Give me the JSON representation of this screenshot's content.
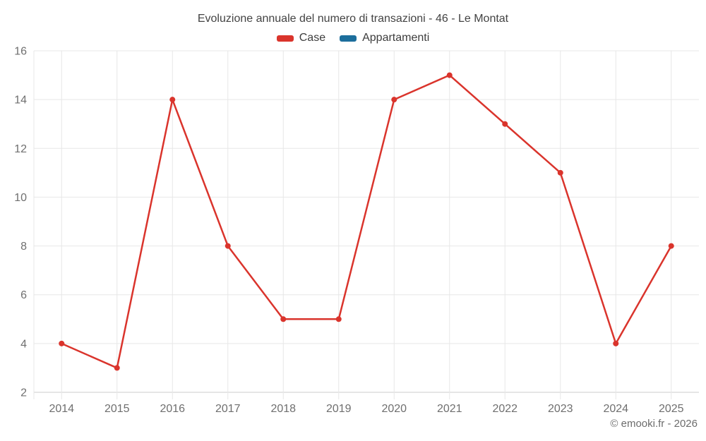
{
  "footer": {
    "text": "© emooki.fr - 2026"
  },
  "colors": {
    "case_red": "#da342c",
    "appartamenti_blue": "#1c6e9c",
    "grid": "#e7e7e7",
    "axis_line": "#cccccc",
    "axis_label": "#6f6f6f",
    "title_text": "#434343"
  },
  "chart_data": {
    "type": "line",
    "title": "Evoluzione annuale del numero di transazioni - 46 - Le Montat",
    "categories": [
      "2014",
      "2015",
      "2016",
      "2017",
      "2018",
      "2019",
      "2020",
      "2021",
      "2022",
      "2023",
      "2024",
      "2025"
    ],
    "series": [
      {
        "name": "Case",
        "color": "#da342c",
        "values": [
          4,
          3,
          14,
          8,
          5,
          5,
          14,
          15,
          13,
          11,
          4,
          8
        ]
      },
      {
        "name": "Appartamenti",
        "color": "#1c6e9c",
        "values": []
      }
    ],
    "xlabel": "",
    "ylabel": "",
    "ylim": [
      2,
      16
    ],
    "yticks": [
      2,
      4,
      6,
      8,
      10,
      12,
      14,
      16
    ],
    "grid": true,
    "legend_position": "top",
    "marker_radius": 4,
    "line_width": 2.5
  }
}
